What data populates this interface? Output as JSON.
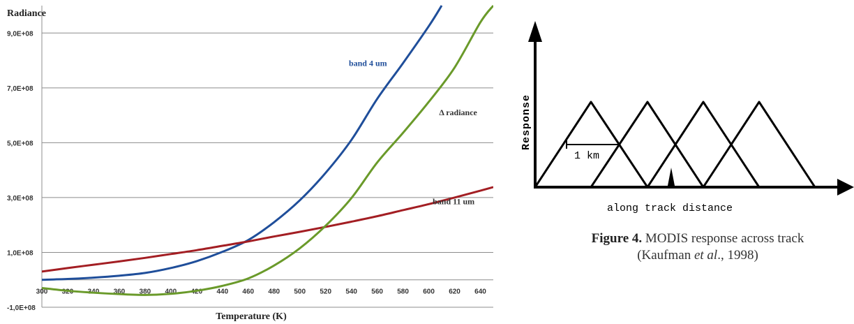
{
  "chart_data": {
    "type": "line",
    "ylabel": "Radiance",
    "xlabel": "Temperature (K)",
    "ylim": [
      -100000000,
      1000000000
    ],
    "xlim": [
      300,
      650
    ],
    "y_ticks": [
      {
        "value": 900000000,
        "label": "9,0E+08"
      },
      {
        "value": 700000000,
        "label": "7,0E+08"
      },
      {
        "value": 500000000,
        "label": "5,0E+08"
      },
      {
        "value": 300000000,
        "label": "3,0E+08"
      },
      {
        "value": 100000000,
        "label": "1,0E+08"
      },
      {
        "value": -100000000,
        "label": "-1,0E+08"
      }
    ],
    "x_ticks": [
      300,
      320,
      340,
      360,
      380,
      400,
      420,
      440,
      460,
      480,
      500,
      520,
      540,
      560,
      580,
      600,
      620,
      640
    ],
    "grid": true,
    "series": [
      {
        "name": "band 4 um",
        "color": "#1f4e9a",
        "x": [
          300,
          320,
          340,
          360,
          380,
          400,
          420,
          440,
          460,
          480,
          500,
          520,
          540,
          560,
          580,
          600,
          610
        ],
        "y": [
          0,
          3000000,
          8000000,
          15000000,
          25000000,
          43000000,
          68000000,
          102000000,
          145000000,
          210000000,
          290000000,
          390000000,
          510000000,
          660000000,
          790000000,
          925000000,
          1000000000
        ]
      },
      {
        "name": "band 11 um",
        "color": "#a31e23",
        "x": [
          300,
          320,
          340,
          360,
          380,
          400,
          420,
          440,
          460,
          480,
          500,
          520,
          540,
          560,
          580,
          600,
          620,
          640,
          650
        ],
        "y": [
          30000000,
          43000000,
          55000000,
          67000000,
          80000000,
          94000000,
          108000000,
          124000000,
          140000000,
          158000000,
          175000000,
          193000000,
          212000000,
          232000000,
          254000000,
          276000000,
          300000000,
          325000000,
          338000000
        ]
      },
      {
        "name": "Δ radiance",
        "color": "#6a9a2a",
        "x": [
          300,
          320,
          340,
          360,
          380,
          400,
          420,
          440,
          460,
          480,
          500,
          520,
          540,
          560,
          580,
          600,
          620,
          640,
          650
        ],
        "y": [
          -30000000,
          -40000000,
          -47000000,
          -52000000,
          -55000000,
          -51000000,
          -40000000,
          -22000000,
          5000000,
          52000000,
          115000000,
          197000000,
          298000000,
          428000000,
          536000000,
          649000000,
          774000000,
          939000000,
          1000000000
        ]
      }
    ],
    "annotations": [
      {
        "text": "band 4 um",
        "x": 538,
        "y": 780000000,
        "color": "#1f4e9a"
      },
      {
        "text": "Δ radiance",
        "x": 608,
        "y": 600000000,
        "color": "#333333"
      },
      {
        "text": "band 11 um",
        "x": 603,
        "y": 275000000,
        "color": "#333333"
      }
    ]
  },
  "figure": {
    "y_axis_label": "Response",
    "x_axis_label": "along track distance",
    "scale_label": "1 km",
    "caption_bold": "Figure 4.",
    "caption_text": "  MODIS response across track",
    "caption_author": "(Kaufman ",
    "caption_etal": "et al",
    "caption_year": "., 1998)"
  }
}
